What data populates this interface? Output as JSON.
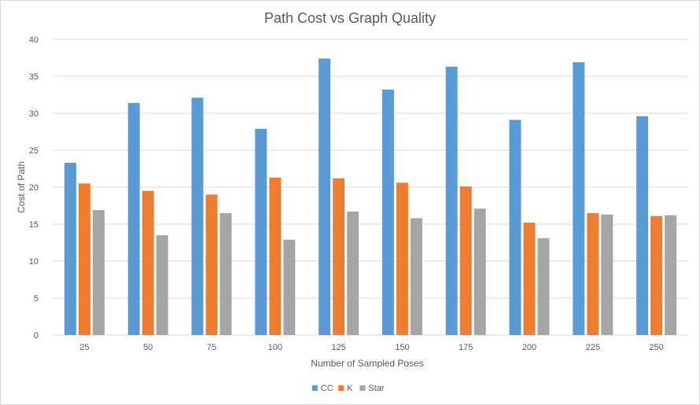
{
  "chart_data": {
    "type": "bar",
    "title": "Path Cost vs Graph Quality",
    "xlabel": "Number  of Sampled Poses",
    "ylabel": "Cost of Path",
    "categories": [
      "25",
      "50",
      "75",
      "100",
      "125",
      "150",
      "175",
      "200",
      "225",
      "250"
    ],
    "series": [
      {
        "name": "CC",
        "color": "#5b9bd5",
        "values": [
          23.3,
          31.4,
          32.1,
          27.9,
          37.4,
          33.2,
          36.3,
          29.1,
          36.9,
          29.6
        ]
      },
      {
        "name": "K",
        "color": "#ed7d31",
        "values": [
          20.5,
          19.5,
          19.0,
          21.3,
          21.2,
          20.6,
          20.1,
          15.2,
          16.5,
          16.1
        ]
      },
      {
        "name": "Star",
        "color": "#a5a5a5",
        "values": [
          16.9,
          13.5,
          16.5,
          12.9,
          16.7,
          15.8,
          17.1,
          13.1,
          16.3,
          16.2
        ]
      }
    ],
    "ylim": [
      0,
      40
    ],
    "yticks": [
      "0",
      "5",
      "10",
      "15",
      "20",
      "25",
      "30",
      "35",
      "40"
    ],
    "grid": true,
    "legend": "bottom"
  }
}
